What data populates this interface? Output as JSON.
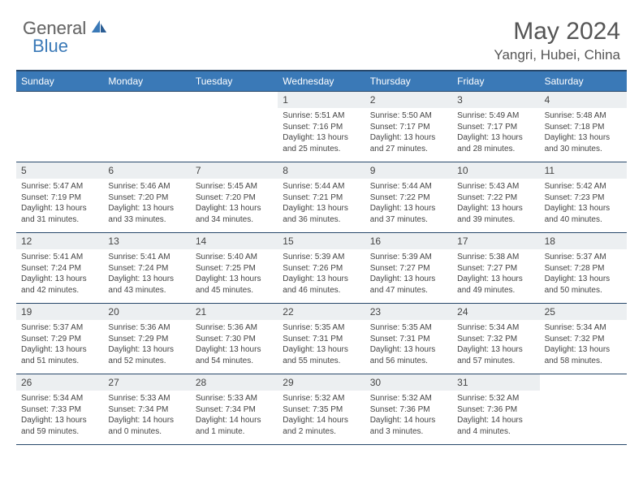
{
  "brand": {
    "word1": "General",
    "word2": "Blue",
    "word1_color": "#6a6a6a",
    "word2_color": "#3a79b7",
    "icon_name": "sail-icon"
  },
  "title": "May 2024",
  "location": "Yangri, Hubei, China",
  "colors": {
    "header_bg": "#3a79b7",
    "header_border": "#28486a",
    "date_bg": "#eceff1",
    "text": "#444444",
    "background": "#ffffff"
  },
  "fonts": {
    "title_size": 30,
    "location_size": 17,
    "dayheader_size": 12,
    "date_size": 12,
    "body_size": 10
  },
  "day_names": [
    "Sunday",
    "Monday",
    "Tuesday",
    "Wednesday",
    "Thursday",
    "Friday",
    "Saturday"
  ],
  "weeks": [
    [
      {
        "date": "",
        "empty": true
      },
      {
        "date": "",
        "empty": true
      },
      {
        "date": "",
        "empty": true
      },
      {
        "date": "1",
        "sunrise": "Sunrise: 5:51 AM",
        "sunset": "Sunset: 7:16 PM",
        "daylight": "Daylight: 13 hours and 25 minutes."
      },
      {
        "date": "2",
        "sunrise": "Sunrise: 5:50 AM",
        "sunset": "Sunset: 7:17 PM",
        "daylight": "Daylight: 13 hours and 27 minutes."
      },
      {
        "date": "3",
        "sunrise": "Sunrise: 5:49 AM",
        "sunset": "Sunset: 7:17 PM",
        "daylight": "Daylight: 13 hours and 28 minutes."
      },
      {
        "date": "4",
        "sunrise": "Sunrise: 5:48 AM",
        "sunset": "Sunset: 7:18 PM",
        "daylight": "Daylight: 13 hours and 30 minutes."
      }
    ],
    [
      {
        "date": "5",
        "sunrise": "Sunrise: 5:47 AM",
        "sunset": "Sunset: 7:19 PM",
        "daylight": "Daylight: 13 hours and 31 minutes."
      },
      {
        "date": "6",
        "sunrise": "Sunrise: 5:46 AM",
        "sunset": "Sunset: 7:20 PM",
        "daylight": "Daylight: 13 hours and 33 minutes."
      },
      {
        "date": "7",
        "sunrise": "Sunrise: 5:45 AM",
        "sunset": "Sunset: 7:20 PM",
        "daylight": "Daylight: 13 hours and 34 minutes."
      },
      {
        "date": "8",
        "sunrise": "Sunrise: 5:44 AM",
        "sunset": "Sunset: 7:21 PM",
        "daylight": "Daylight: 13 hours and 36 minutes."
      },
      {
        "date": "9",
        "sunrise": "Sunrise: 5:44 AM",
        "sunset": "Sunset: 7:22 PM",
        "daylight": "Daylight: 13 hours and 37 minutes."
      },
      {
        "date": "10",
        "sunrise": "Sunrise: 5:43 AM",
        "sunset": "Sunset: 7:22 PM",
        "daylight": "Daylight: 13 hours and 39 minutes."
      },
      {
        "date": "11",
        "sunrise": "Sunrise: 5:42 AM",
        "sunset": "Sunset: 7:23 PM",
        "daylight": "Daylight: 13 hours and 40 minutes."
      }
    ],
    [
      {
        "date": "12",
        "sunrise": "Sunrise: 5:41 AM",
        "sunset": "Sunset: 7:24 PM",
        "daylight": "Daylight: 13 hours and 42 minutes."
      },
      {
        "date": "13",
        "sunrise": "Sunrise: 5:41 AM",
        "sunset": "Sunset: 7:24 PM",
        "daylight": "Daylight: 13 hours and 43 minutes."
      },
      {
        "date": "14",
        "sunrise": "Sunrise: 5:40 AM",
        "sunset": "Sunset: 7:25 PM",
        "daylight": "Daylight: 13 hours and 45 minutes."
      },
      {
        "date": "15",
        "sunrise": "Sunrise: 5:39 AM",
        "sunset": "Sunset: 7:26 PM",
        "daylight": "Daylight: 13 hours and 46 minutes."
      },
      {
        "date": "16",
        "sunrise": "Sunrise: 5:39 AM",
        "sunset": "Sunset: 7:27 PM",
        "daylight": "Daylight: 13 hours and 47 minutes."
      },
      {
        "date": "17",
        "sunrise": "Sunrise: 5:38 AM",
        "sunset": "Sunset: 7:27 PM",
        "daylight": "Daylight: 13 hours and 49 minutes."
      },
      {
        "date": "18",
        "sunrise": "Sunrise: 5:37 AM",
        "sunset": "Sunset: 7:28 PM",
        "daylight": "Daylight: 13 hours and 50 minutes."
      }
    ],
    [
      {
        "date": "19",
        "sunrise": "Sunrise: 5:37 AM",
        "sunset": "Sunset: 7:29 PM",
        "daylight": "Daylight: 13 hours and 51 minutes."
      },
      {
        "date": "20",
        "sunrise": "Sunrise: 5:36 AM",
        "sunset": "Sunset: 7:29 PM",
        "daylight": "Daylight: 13 hours and 52 minutes."
      },
      {
        "date": "21",
        "sunrise": "Sunrise: 5:36 AM",
        "sunset": "Sunset: 7:30 PM",
        "daylight": "Daylight: 13 hours and 54 minutes."
      },
      {
        "date": "22",
        "sunrise": "Sunrise: 5:35 AM",
        "sunset": "Sunset: 7:31 PM",
        "daylight": "Daylight: 13 hours and 55 minutes."
      },
      {
        "date": "23",
        "sunrise": "Sunrise: 5:35 AM",
        "sunset": "Sunset: 7:31 PM",
        "daylight": "Daylight: 13 hours and 56 minutes."
      },
      {
        "date": "24",
        "sunrise": "Sunrise: 5:34 AM",
        "sunset": "Sunset: 7:32 PM",
        "daylight": "Daylight: 13 hours and 57 minutes."
      },
      {
        "date": "25",
        "sunrise": "Sunrise: 5:34 AM",
        "sunset": "Sunset: 7:32 PM",
        "daylight": "Daylight: 13 hours and 58 minutes."
      }
    ],
    [
      {
        "date": "26",
        "sunrise": "Sunrise: 5:34 AM",
        "sunset": "Sunset: 7:33 PM",
        "daylight": "Daylight: 13 hours and 59 minutes."
      },
      {
        "date": "27",
        "sunrise": "Sunrise: 5:33 AM",
        "sunset": "Sunset: 7:34 PM",
        "daylight": "Daylight: 14 hours and 0 minutes."
      },
      {
        "date": "28",
        "sunrise": "Sunrise: 5:33 AM",
        "sunset": "Sunset: 7:34 PM",
        "daylight": "Daylight: 14 hours and 1 minute."
      },
      {
        "date": "29",
        "sunrise": "Sunrise: 5:32 AM",
        "sunset": "Sunset: 7:35 PM",
        "daylight": "Daylight: 14 hours and 2 minutes."
      },
      {
        "date": "30",
        "sunrise": "Sunrise: 5:32 AM",
        "sunset": "Sunset: 7:36 PM",
        "daylight": "Daylight: 14 hours and 3 minutes."
      },
      {
        "date": "31",
        "sunrise": "Sunrise: 5:32 AM",
        "sunset": "Sunset: 7:36 PM",
        "daylight": "Daylight: 14 hours and 4 minutes."
      },
      {
        "date": "",
        "empty": true
      }
    ]
  ]
}
